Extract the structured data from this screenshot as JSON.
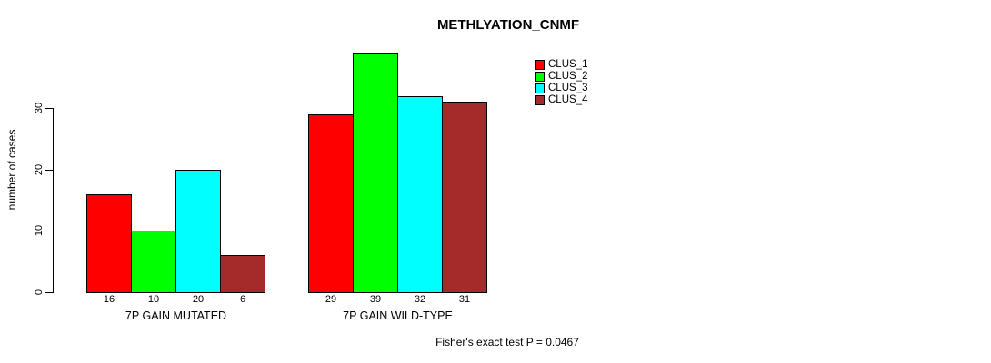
{
  "chart_data": {
    "type": "bar",
    "title": "METHLYATION_CNMF",
    "xlabel": "",
    "ylabel": "number of cases",
    "ylim": [
      0,
      30
    ],
    "yticks": [
      0,
      10,
      20,
      30
    ],
    "grid": false,
    "legend_position": "top-right",
    "categories": [
      "7P GAIN MUTATED",
      "7P GAIN WILD-TYPE"
    ],
    "series": [
      {
        "name": "CLUS_1",
        "color": "#ff0000",
        "values": [
          16,
          29
        ]
      },
      {
        "name": "CLUS_2",
        "color": "#00ff00",
        "values": [
          10,
          39
        ]
      },
      {
        "name": "CLUS_3",
        "color": "#00ffff",
        "values": [
          20,
          32
        ]
      },
      {
        "name": "CLUS_4",
        "color": "#a52a2a",
        "values": [
          6,
          31
        ]
      }
    ],
    "bar_value_labels": [
      [
        16,
        10,
        20,
        6
      ],
      [
        29,
        39,
        32,
        31
      ]
    ],
    "annotation": "Fisher's exact test P = 0.0467",
    "text_color": "#000000",
    "axis_color": "#000000"
  }
}
